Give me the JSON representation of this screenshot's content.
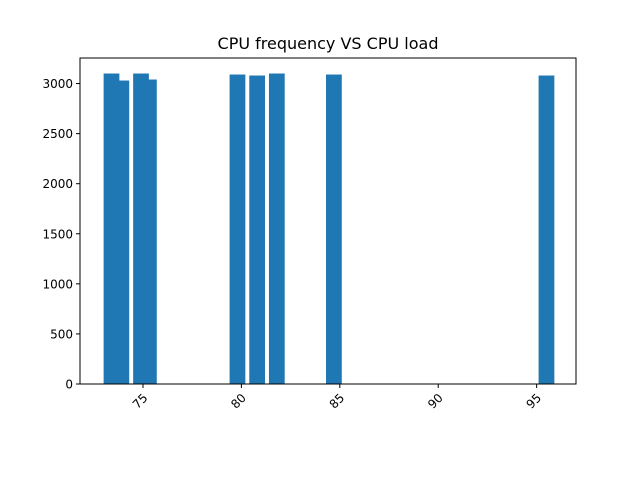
{
  "chart_data": {
    "type": "bar",
    "title": "CPU frequency VS CPU load",
    "xlabel": "",
    "ylabel": "",
    "xlim": [
      71.8,
      97.0
    ],
    "ylim": [
      0,
      3255
    ],
    "bar_width": 0.8,
    "bar_color": "#1f77b4",
    "grid": false,
    "x_ticks": [
      75,
      80,
      85,
      90,
      95
    ],
    "x_tick_labels": [
      "75",
      "80",
      "85",
      "90",
      "95"
    ],
    "x_tick_rotation": -45,
    "y_ticks": [
      0,
      500,
      1000,
      1500,
      2000,
      2500,
      3000
    ],
    "y_tick_labels": [
      "0",
      "500",
      "1000",
      "1500",
      "2000",
      "2500",
      "3000"
    ],
    "bars": [
      {
        "x": 73.4,
        "value": 3100
      },
      {
        "x": 73.9,
        "value": 3030
      },
      {
        "x": 74.9,
        "value": 3100
      },
      {
        "x": 75.3,
        "value": 3040
      },
      {
        "x": 79.8,
        "value": 3090
      },
      {
        "x": 80.8,
        "value": 3080
      },
      {
        "x": 81.8,
        "value": 3100
      },
      {
        "x": 84.7,
        "value": 3090
      },
      {
        "x": 95.5,
        "value": 3080
      }
    ]
  }
}
